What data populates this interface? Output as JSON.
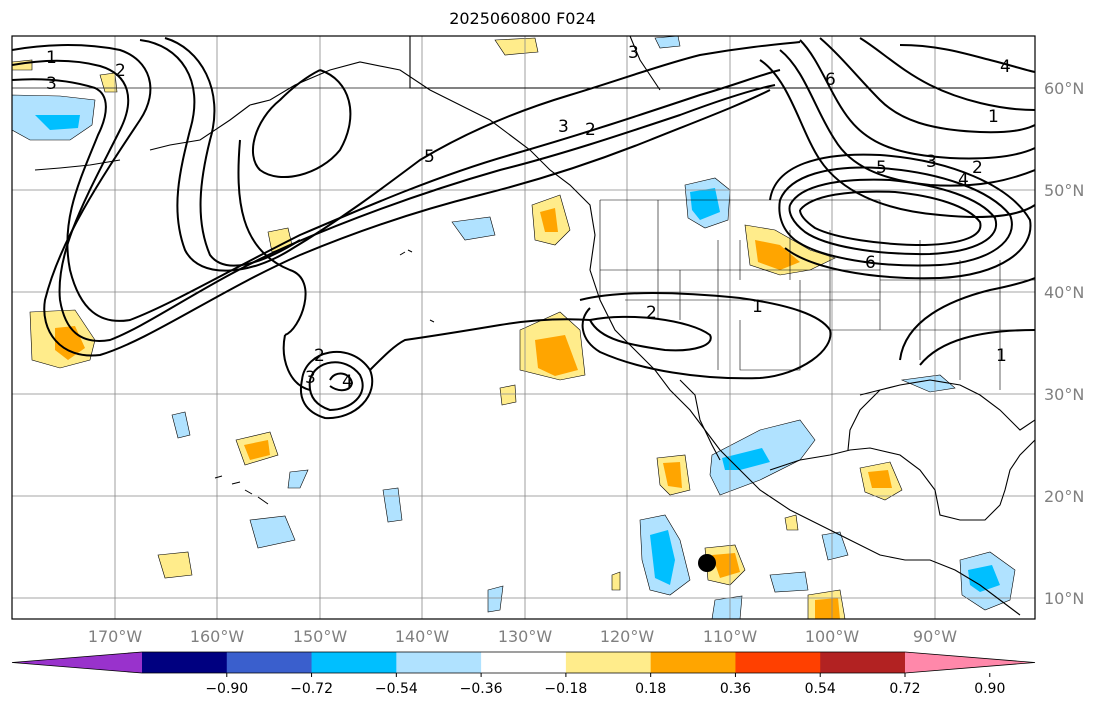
{
  "title": "2025060800 F024",
  "lat_labels": [
    "60°N",
    "50°N",
    "40°N",
    "30°N",
    "20°N",
    "10°N"
  ],
  "lon_labels": [
    "170°W",
    "160°W",
    "150°W",
    "140°W",
    "130°W",
    "120°W",
    "110°W",
    "100°W",
    "90°W"
  ],
  "colorbar": {
    "ticks": [
      "−0.90",
      "−0.72",
      "−0.54",
      "−0.36",
      "−0.18",
      "0.18",
      "0.36",
      "0.54",
      "0.72",
      "0.90"
    ],
    "colors": [
      "#9932cc",
      "#000080",
      "#3a5fcd",
      "#00bfff",
      "#b0e2ff",
      "#ffffff",
      "#ffec8b",
      "#ffa500",
      "#ff4000",
      "#b22222",
      "#ff88aa"
    ]
  },
  "contour_labels": [
    "1",
    "3",
    "2",
    "3",
    "2",
    "3",
    "6",
    "1",
    "5",
    "3",
    "2",
    "4",
    "5",
    "6",
    "2",
    "1",
    "2",
    "3",
    "4",
    "1",
    "4"
  ],
  "marker": {
    "lat": 13.4,
    "lon": -110.2
  }
}
